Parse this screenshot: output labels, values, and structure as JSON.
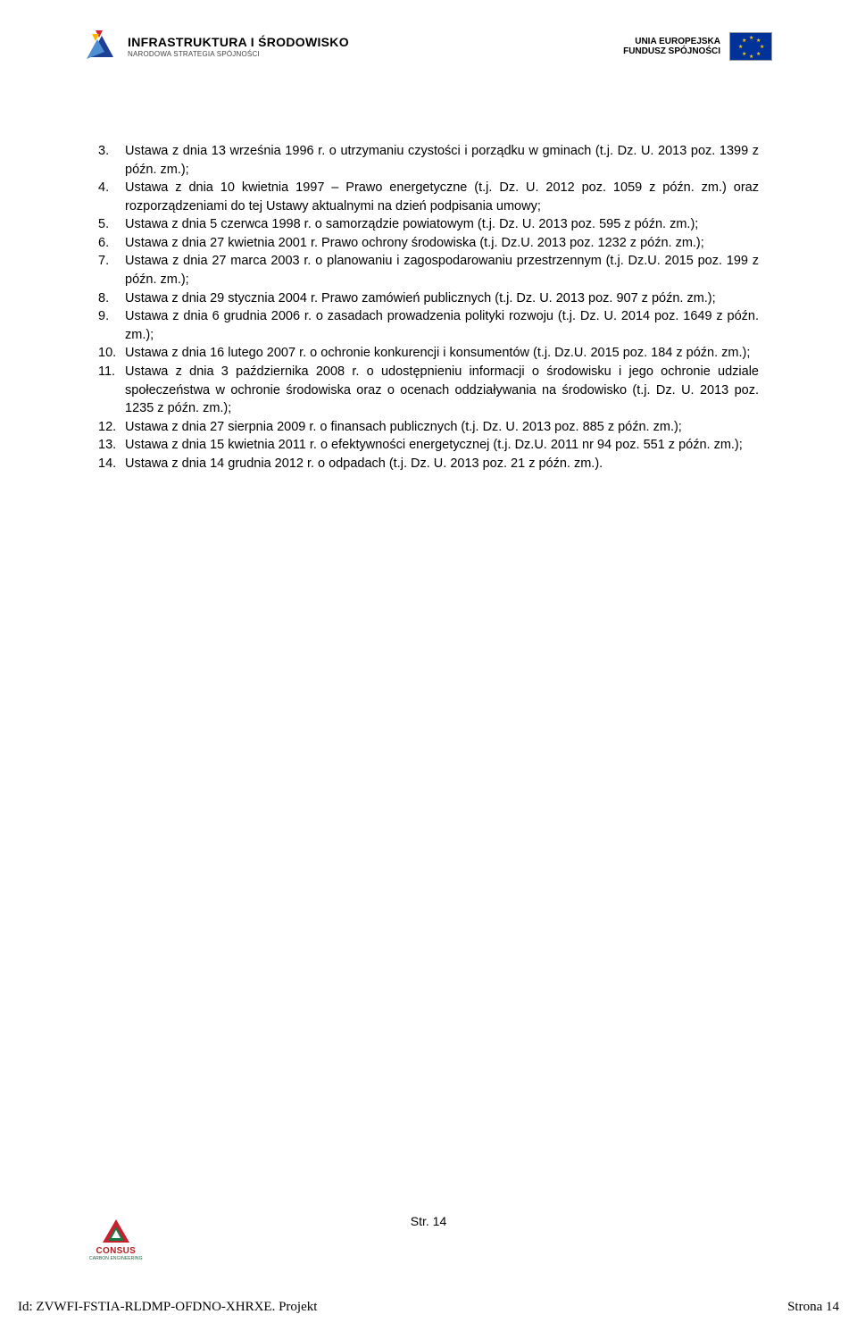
{
  "header": {
    "infra_title": "INFRASTRUKTURA I ŚRODOWISKO",
    "infra_sub": "NARODOWA STRATEGIA SPÓJNOŚCI",
    "eu_title": "UNIA EUROPEJSKA",
    "eu_sub": "FUNDUSZ SPÓJNOŚCI",
    "logo_colors": {
      "red": "#d8232a",
      "yellow": "#f9b500",
      "blue_dark": "#1d3f94",
      "blue_light": "#4d8fd1",
      "eu_bg": "#003399",
      "eu_star": "#ffcc00"
    }
  },
  "list": [
    {
      "num": "3.",
      "text": "Ustawa z dnia 13 września 1996 r. o utrzymaniu czystości i porządku w gminach (t.j. Dz. U. 2013 poz. 1399 z późn. zm.);"
    },
    {
      "num": "4.",
      "text": "Ustawa z dnia 10 kwietnia 1997 – Prawo energetyczne (t.j. Dz. U. 2012 poz. 1059 z późn. zm.) oraz rozporządzeniami do tej Ustawy aktualnymi na dzień podpisania umowy;"
    },
    {
      "num": "5.",
      "text": "Ustawa z dnia 5 czerwca 1998 r. o samorządzie powiatowym (t.j. Dz. U. 2013 poz. 595 z późn. zm.);"
    },
    {
      "num": "6.",
      "text": "Ustawa z dnia 27 kwietnia 2001 r. Prawo ochrony środowiska (t.j. Dz.U. 2013 poz. 1232 z późn. zm.);"
    },
    {
      "num": "7.",
      "text": "Ustawa z dnia 27 marca 2003 r. o planowaniu i zagospodarowaniu przestrzennym (t.j. Dz.U. 2015 poz. 199 z późn. zm.);"
    },
    {
      "num": "8.",
      "text": "Ustawa z dnia 29 stycznia 2004 r. Prawo zamówień publicznych (t.j. Dz. U. 2013 poz. 907 z późn. zm.);"
    },
    {
      "num": "9.",
      "text": "Ustawa z dnia 6 grudnia 2006 r. o zasadach prowadzenia polityki rozwoju (t.j. Dz. U. 2014 poz. 1649 z późn. zm.);"
    },
    {
      "num": "10.",
      "text": "Ustawa z dnia 16 lutego 2007 r. o ochronie konkurencji i konsumentów (t.j. Dz.U. 2015 poz. 184 z późn. zm.);"
    },
    {
      "num": "11.",
      "text": "Ustawa z dnia 3 października 2008 r. o udostępnieniu informacji o środowisku i jego ochronie udziale społeczeństwa w ochronie środowiska oraz o ocenach oddziaływania na środowisko (t.j. Dz. U. 2013 poz. 1235 z późn. zm.);"
    },
    {
      "num": "12.",
      "text": "Ustawa z dnia 27 sierpnia 2009 r. o finansach publicznych (t.j. Dz. U. 2013 poz. 885 z późn. zm.);"
    },
    {
      "num": "13.",
      "text": "Ustawa z dnia 15 kwietnia 2011 r. o efektywności energetycznej (t.j. Dz.U. 2011 nr 94 poz. 551 z późn. zm.);"
    },
    {
      "num": "14.",
      "text": "Ustawa z dnia 14 grudnia 2012 r. o odpadach (t.j. Dz. U. 2013 poz. 21 z późn. zm.)."
    }
  ],
  "page_num": "Str. 14",
  "footer_logo": {
    "name": "CONSUS",
    "sub": "CARBON ENGINEERING",
    "tri_red": "#c8202f",
    "tri_green": "#1a7a47"
  },
  "doc_footer": {
    "left": "Id: ZVWFI-FSTIA-RLDMP-OFDNO-XHRXE. Projekt",
    "right": "Strona 14"
  }
}
